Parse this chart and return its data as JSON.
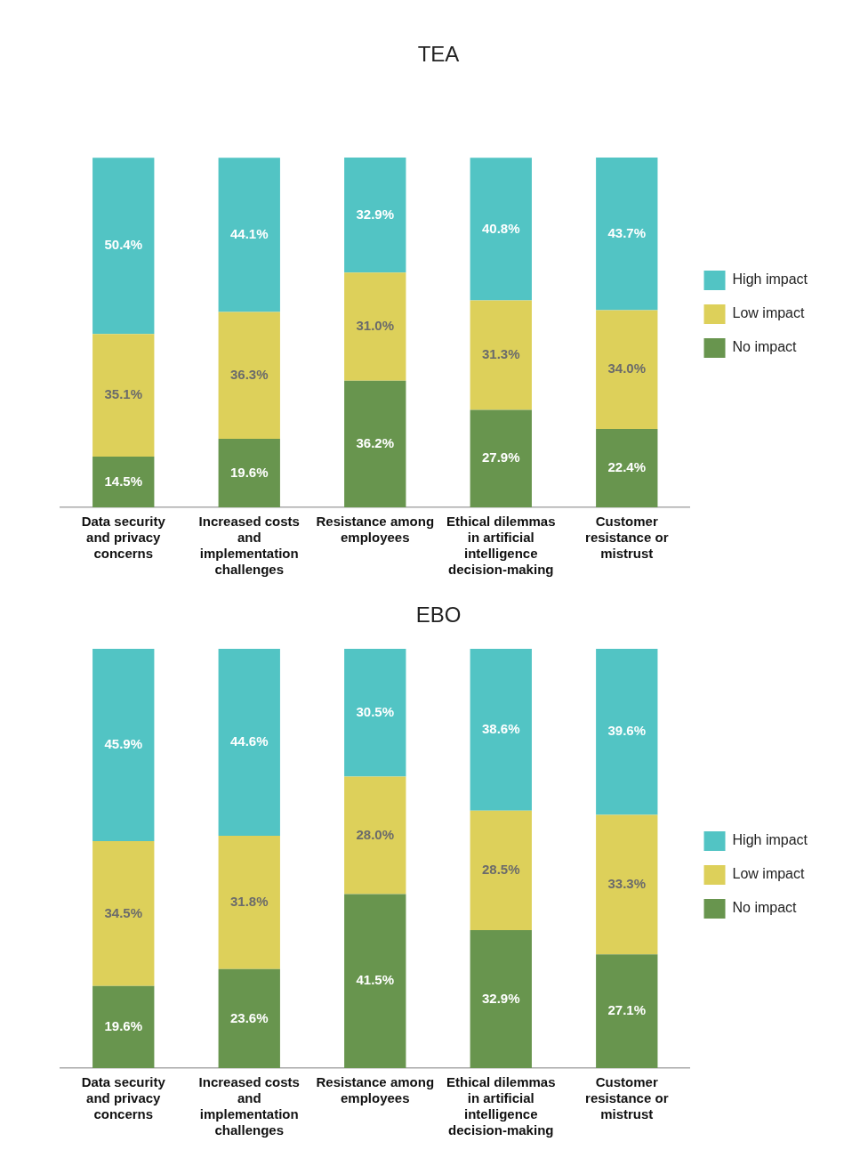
{
  "chart_data": [
    {
      "type": "bar",
      "title": "TEA",
      "stacked": true,
      "legend": "right",
      "categories": [
        "Data security and privacy concerns",
        "Increased costs and implementation challenges",
        "Resistance among employees",
        "Ethical dilemmas in artificial intelligence decision-making",
        "Customer resistance or mistrust"
      ],
      "series": [
        {
          "name": "No impact",
          "color": "#68954e",
          "values": [
            14.5,
            19.6,
            36.2,
            27.9,
            22.4
          ],
          "value_labels": [
            "14.5%",
            "19.6%",
            "36.2%",
            "27.9%",
            "22.4%"
          ]
        },
        {
          "name": "Low impact",
          "color": "#ddd05a",
          "values": [
            35.1,
            36.3,
            31.0,
            31.3,
            34.0
          ],
          "value_labels": [
            "35.1%",
            "36.3%",
            "31.0%",
            "31.3%",
            "34.0%"
          ]
        },
        {
          "name": "High impact",
          "color": "#52c4c4",
          "values": [
            50.4,
            44.1,
            32.9,
            40.8,
            43.7
          ],
          "value_labels": [
            "50.4%",
            "44.1%",
            "32.9%",
            "40.8%",
            "43.7%"
          ]
        }
      ]
    },
    {
      "type": "bar",
      "title": "EBO",
      "stacked": true,
      "legend": "right",
      "categories": [
        "Data security and privacy concerns",
        "Increased costs and implementation challenges",
        "Resistance among employees",
        "Ethical dilemmas in artificial intelligence decision-making",
        "Customer resistance or mistrust"
      ],
      "series": [
        {
          "name": "No impact",
          "color": "#68954e",
          "values": [
            19.6,
            23.6,
            41.5,
            32.9,
            27.1
          ],
          "value_labels": [
            "19.6%",
            "23.6%",
            "41.5%",
            "32.9%",
            "27.1%"
          ]
        },
        {
          "name": "Low impact",
          "color": "#ddd05a",
          "values": [
            34.5,
            31.8,
            28.0,
            28.5,
            33.3
          ],
          "value_labels": [
            "34.5%",
            "31.8%",
            "28.0%",
            "28.5%",
            "33.3%"
          ]
        },
        {
          "name": "High impact",
          "color": "#52c4c4",
          "values": [
            45.9,
            44.6,
            30.5,
            38.6,
            39.6
          ],
          "value_labels": [
            "45.9%",
            "44.6%",
            "30.5%",
            "38.6%",
            "39.6%"
          ]
        }
      ]
    }
  ]
}
